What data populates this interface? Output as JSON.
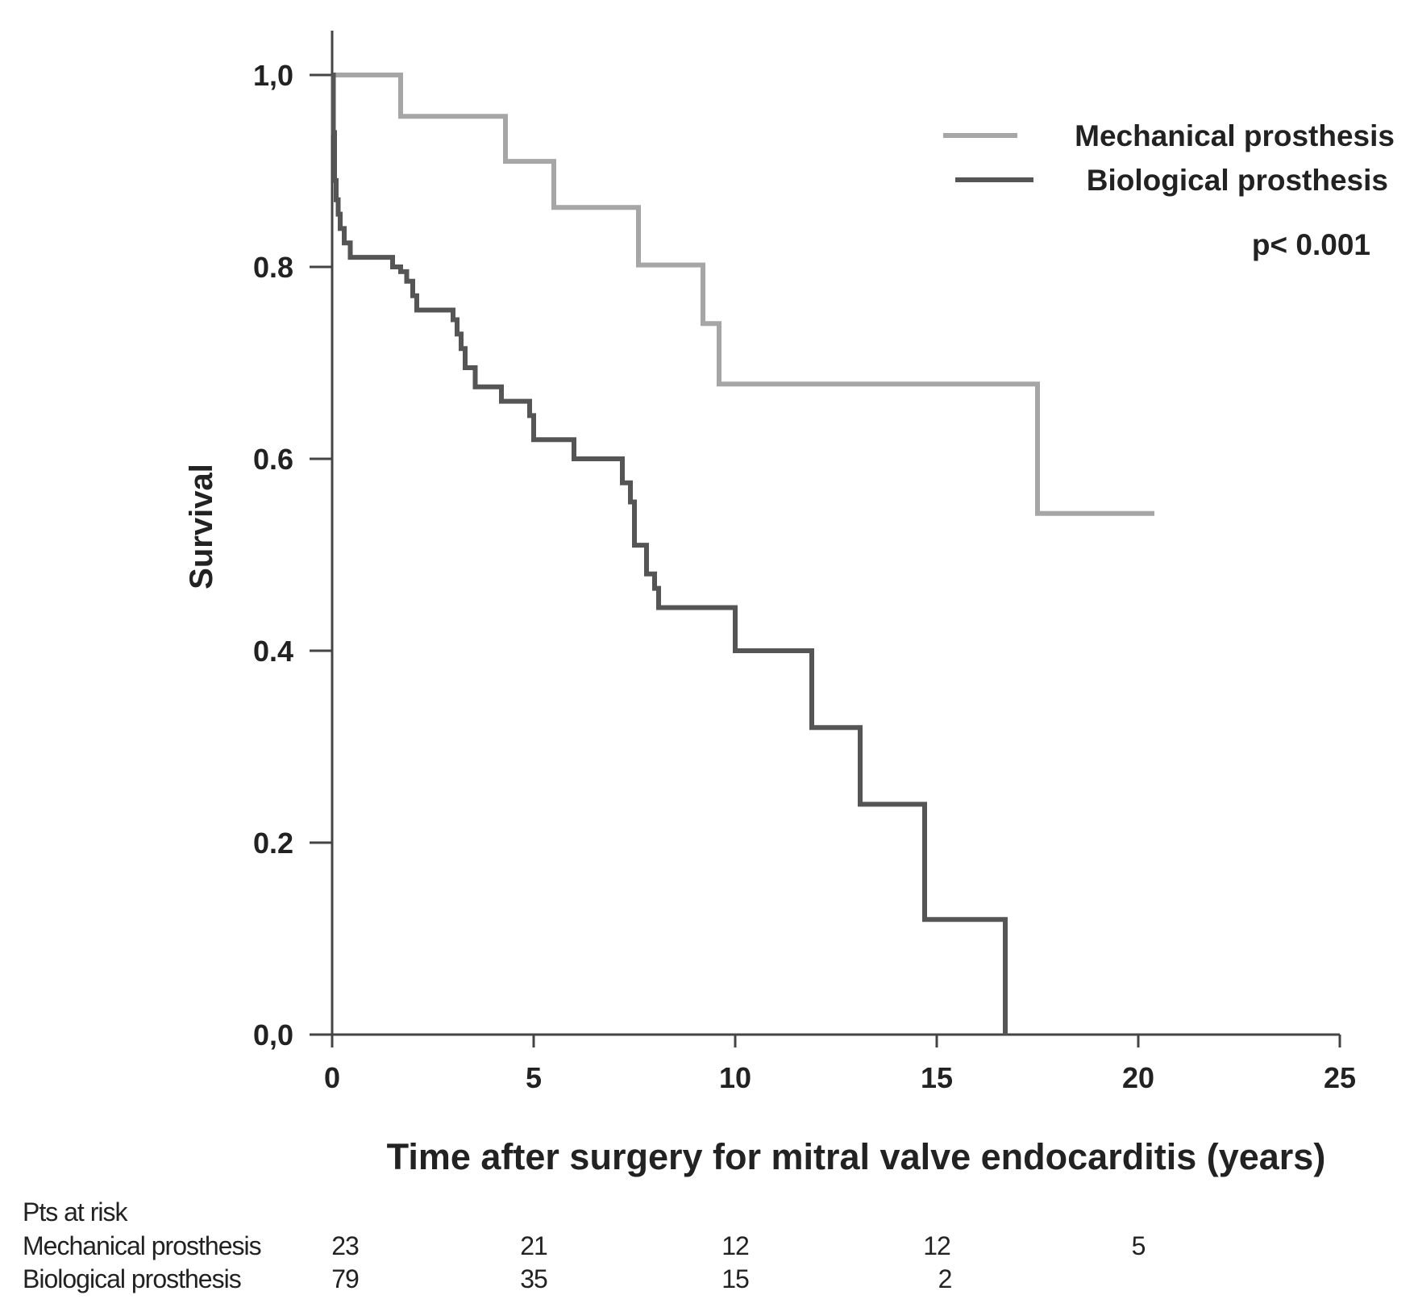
{
  "chart_data": {
    "type": "line",
    "step": true,
    "xlabel": "Time after surgery for mitral valve endocarditis (years)",
    "ylabel": "Survival",
    "xlim": [
      0,
      25
    ],
    "ylim": [
      0,
      1.0
    ],
    "x_ticks": [
      0,
      5,
      10,
      15,
      20,
      25
    ],
    "x_tick_labels": [
      "0",
      "5",
      "10",
      "15",
      "20",
      "25"
    ],
    "y_ticks": [
      0,
      0.2,
      0.4,
      0.6,
      0.8,
      1.0
    ],
    "y_tick_labels": [
      "0,0",
      "0.2",
      "0.4",
      "0.6",
      "0.8",
      "1,0"
    ],
    "grid": false,
    "legend_position": "top-right",
    "annotation": "p< 0.001",
    "series": [
      {
        "name": "Mechanical prosthesis",
        "color": "#a6a6a6",
        "x": [
          0,
          1.7,
          4.3,
          5.5,
          7.6,
          9.2,
          9.6,
          17.5,
          20.4
        ],
        "y": [
          1.0,
          0.957,
          0.91,
          0.862,
          0.802,
          0.741,
          0.678,
          0.543,
          0.543
        ]
      },
      {
        "name": "Biological prosthesis",
        "color": "#555555",
        "x": [
          0,
          0.03,
          0.06,
          0.1,
          0.15,
          0.2,
          0.3,
          0.45,
          1.5,
          1.7,
          1.85,
          2.0,
          2.1,
          3.0,
          3.1,
          3.2,
          3.3,
          3.55,
          4.2,
          4.9,
          5.0,
          6.0,
          7.2,
          7.4,
          7.5,
          7.8,
          8.0,
          8.1,
          10.0,
          11.9,
          13.1,
          14.7,
          16.7
        ],
        "y": [
          1.0,
          0.94,
          0.89,
          0.87,
          0.855,
          0.84,
          0.825,
          0.81,
          0.8,
          0.795,
          0.785,
          0.77,
          0.755,
          0.745,
          0.73,
          0.715,
          0.695,
          0.675,
          0.66,
          0.645,
          0.62,
          0.6,
          0.575,
          0.555,
          0.51,
          0.48,
          0.465,
          0.445,
          0.4,
          0.32,
          0.24,
          0.12,
          0.0
        ]
      }
    ]
  },
  "risk_table": {
    "title": "Pts at risk",
    "x": [
      0,
      5,
      10,
      15,
      20
    ],
    "rows": [
      {
        "label": "Mechanical prosthesis",
        "values": [
          "23",
          "21",
          "12",
          "12",
          "5"
        ]
      },
      {
        "label": "Biological prosthesis",
        "values": [
          "79",
          "35",
          "15",
          "2"
        ]
      }
    ]
  }
}
